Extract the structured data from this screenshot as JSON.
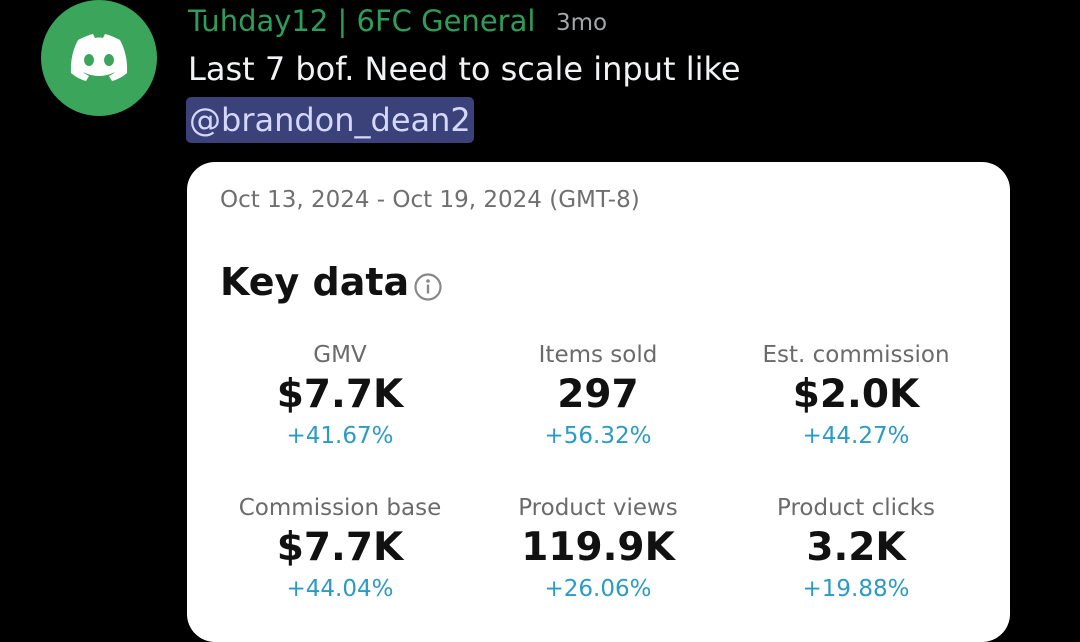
{
  "message": {
    "author": "Tuhday12 | 6FC General",
    "timestamp": "3mo",
    "text": "Last 7 bof. Need to scale input like",
    "mention": "@brandon_dean2"
  },
  "card": {
    "date_range": "Oct 13, 2024 - Oct 19, 2024 (GMT-8)",
    "title": "Key data",
    "metrics": [
      {
        "label": "GMV",
        "value": "$7.7K",
        "change": "+41.67%"
      },
      {
        "label": "Items sold",
        "value": "297",
        "change": "+56.32%"
      },
      {
        "label": "Est. commission",
        "value": "$2.0K",
        "change": "+44.27%"
      },
      {
        "label": "Commission base",
        "value": "$7.7K",
        "change": "+44.04%"
      },
      {
        "label": "Product views",
        "value": "119.9K",
        "change": "+26.06%"
      },
      {
        "label": "Product clicks",
        "value": "3.2K",
        "change": "+19.88%"
      }
    ]
  }
}
